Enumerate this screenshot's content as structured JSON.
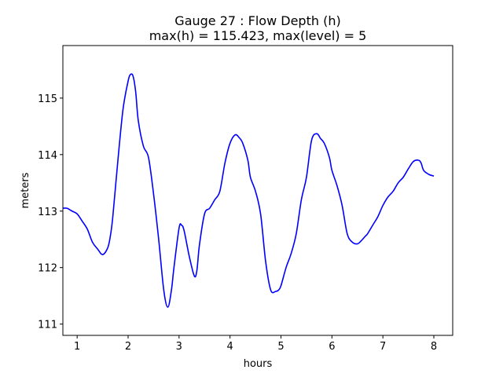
{
  "chart_data": {
    "type": "line",
    "title_line1": "Gauge 27 : Flow Depth (h)",
    "title_line2": "max(h) = 115.423,    max(level) = 5",
    "xlabel": "hours",
    "ylabel": "meters",
    "xlim": [
      0.72,
      8.37
    ],
    "ylim": [
      110.8,
      115.93
    ],
    "xticks": [
      1,
      2,
      3,
      4,
      5,
      6,
      7,
      8
    ],
    "yticks": [
      111,
      112,
      113,
      114,
      115
    ],
    "grid": false,
    "legend": "none",
    "series": [
      {
        "color": "#0000ff",
        "x": [
          0.72,
          0.8,
          0.9,
          1.0,
          1.1,
          1.2,
          1.3,
          1.4,
          1.5,
          1.6,
          1.65,
          1.7,
          1.8,
          1.9,
          2.0,
          2.05,
          2.1,
          2.15,
          2.2,
          2.3,
          2.4,
          2.5,
          2.6,
          2.7,
          2.78,
          2.85,
          2.9,
          3.0,
          3.05,
          3.1,
          3.2,
          3.3,
          3.35,
          3.4,
          3.5,
          3.6,
          3.7,
          3.8,
          3.9,
          4.0,
          4.1,
          4.18,
          4.25,
          4.35,
          4.4,
          4.5,
          4.6,
          4.7,
          4.8,
          4.9,
          4.95,
          5.0,
          5.1,
          5.2,
          5.3,
          5.4,
          5.5,
          5.6,
          5.7,
          5.78,
          5.85,
          5.95,
          6.0,
          6.1,
          6.2,
          6.3,
          6.4,
          6.5,
          6.58,
          6.65,
          6.7,
          6.8,
          6.9,
          7.0,
          7.1,
          7.2,
          7.3,
          7.4,
          7.5,
          7.6,
          7.7,
          7.75,
          7.8,
          7.9,
          8.0
        ],
        "y": [
          113.05,
          113.05,
          113.0,
          112.95,
          112.82,
          112.68,
          112.45,
          112.33,
          112.23,
          112.35,
          112.55,
          112.9,
          113.9,
          114.8,
          115.3,
          115.42,
          115.38,
          115.1,
          114.6,
          114.15,
          113.95,
          113.3,
          112.5,
          111.6,
          111.3,
          111.6,
          112.0,
          112.7,
          112.75,
          112.65,
          112.2,
          111.85,
          111.95,
          112.4,
          112.95,
          113.05,
          113.2,
          113.35,
          113.85,
          114.2,
          114.35,
          114.3,
          114.2,
          113.9,
          113.6,
          113.35,
          112.95,
          112.1,
          111.6,
          111.58,
          111.6,
          111.68,
          112.0,
          112.25,
          112.6,
          113.2,
          113.6,
          114.25,
          114.37,
          114.28,
          114.2,
          113.95,
          113.72,
          113.45,
          113.1,
          112.6,
          112.45,
          112.42,
          112.48,
          112.55,
          112.6,
          112.75,
          112.9,
          113.1,
          113.25,
          113.35,
          113.5,
          113.6,
          113.75,
          113.88,
          113.9,
          113.85,
          113.72,
          113.65,
          113.62
        ]
      }
    ]
  }
}
